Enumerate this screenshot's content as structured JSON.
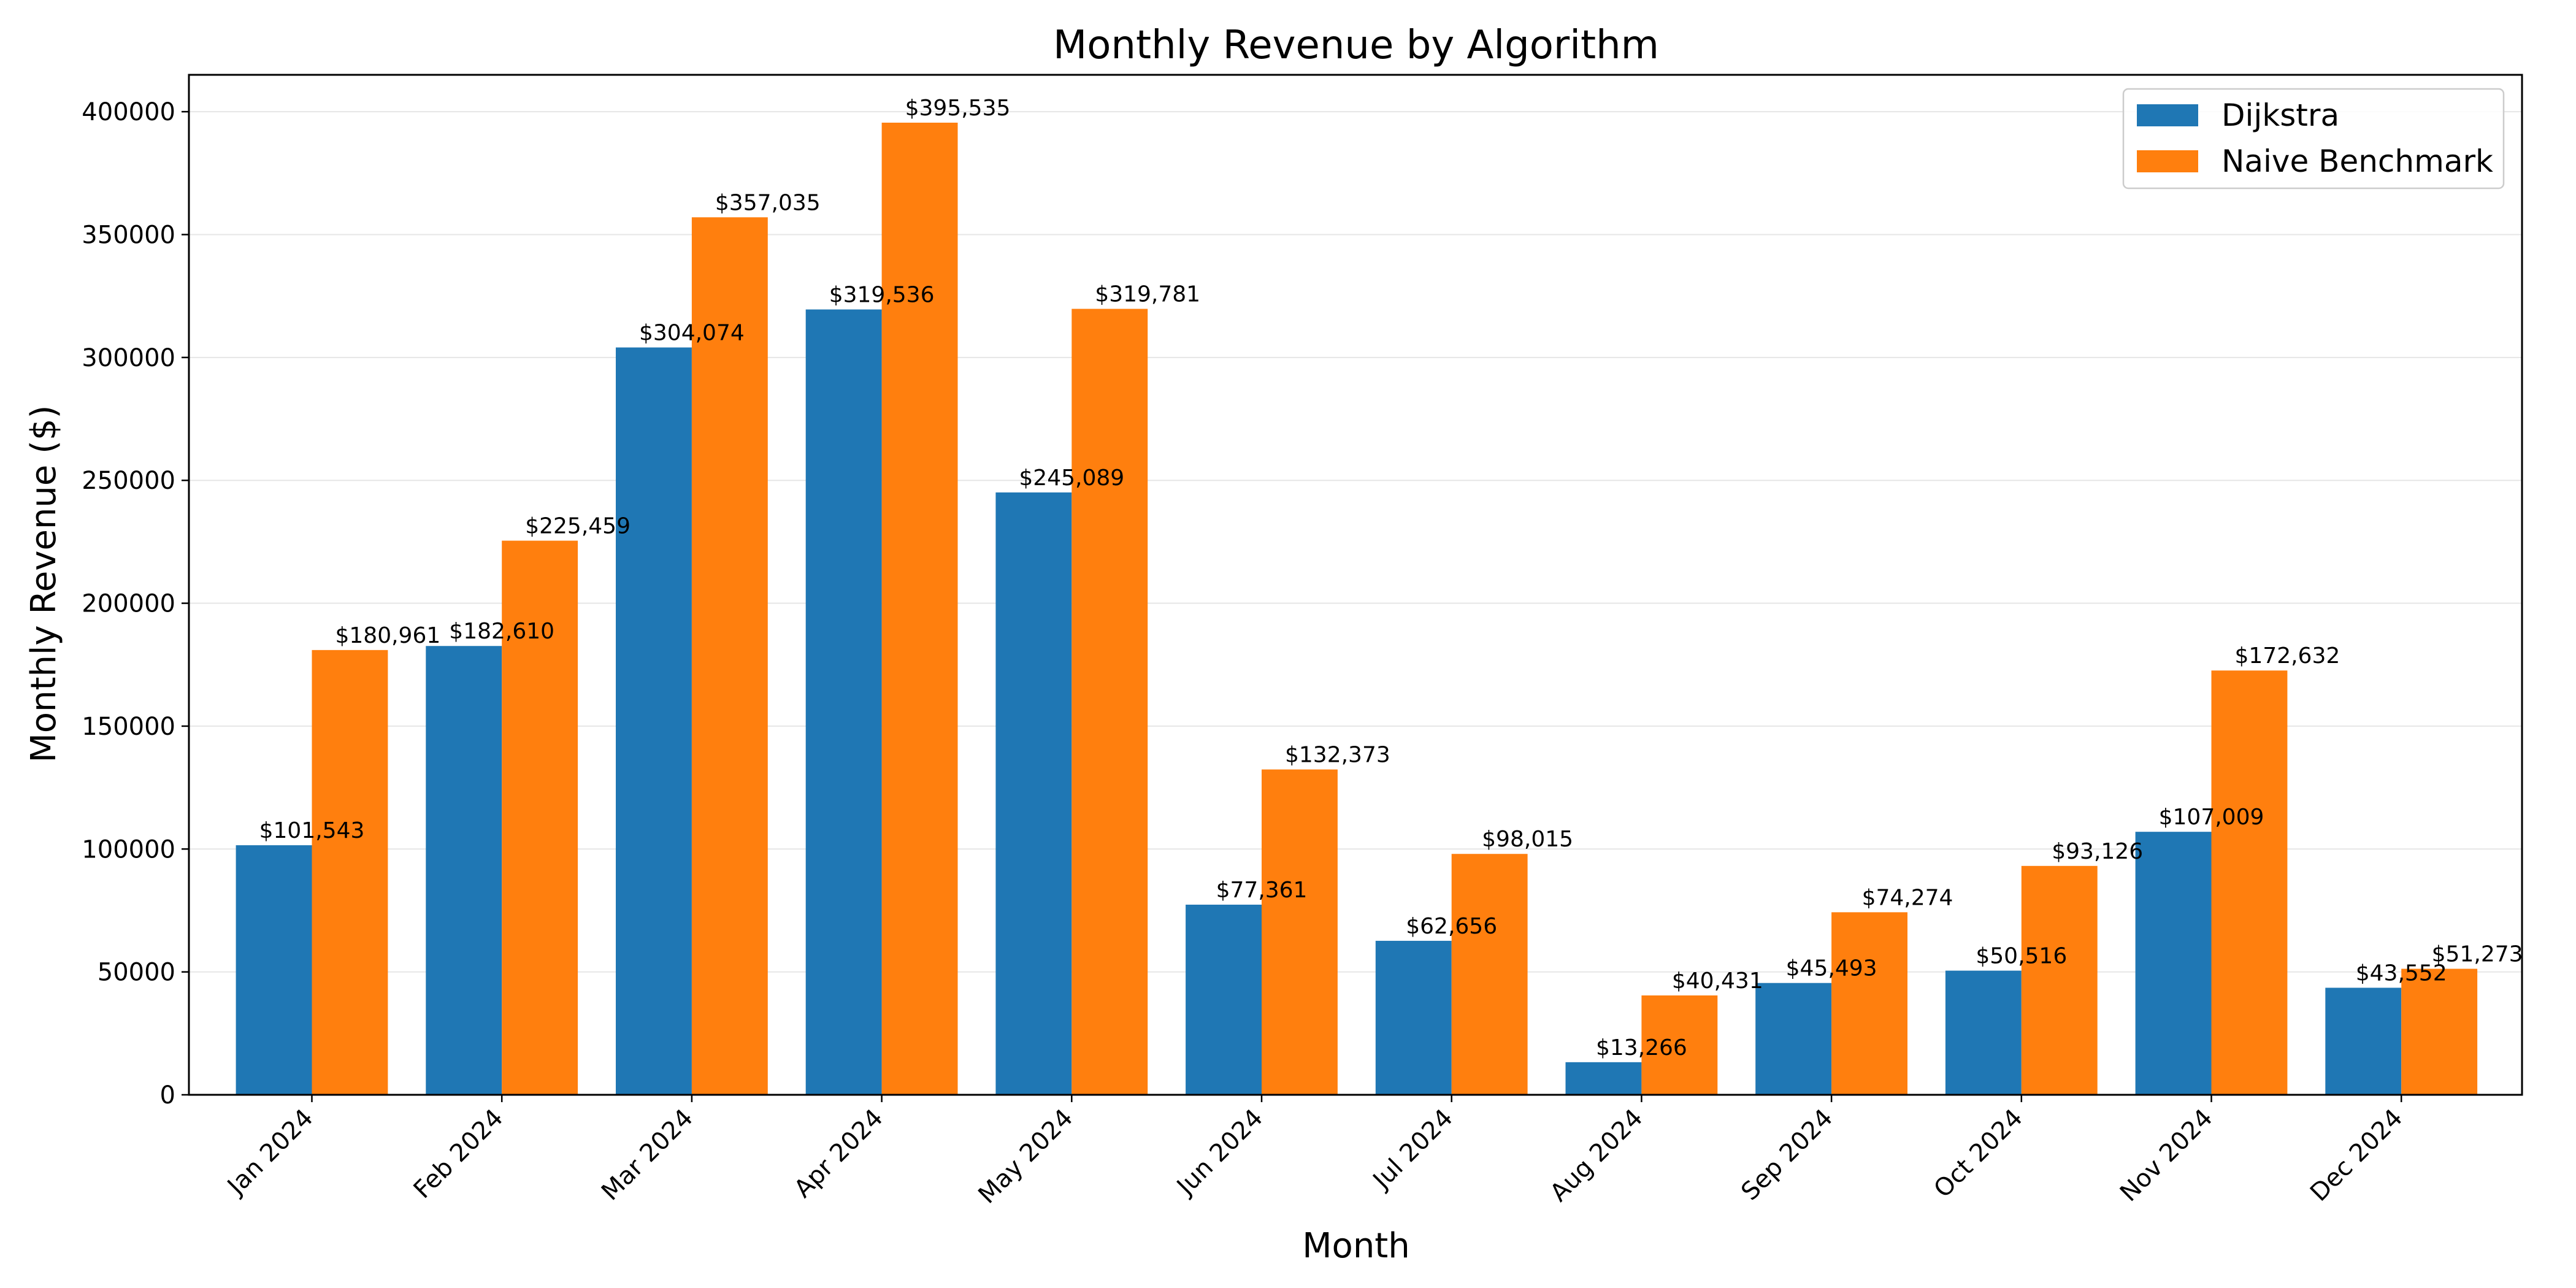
{
  "chart_data": {
    "type": "bar",
    "title": "Monthly Revenue by Algorithm",
    "xlabel": "Month",
    "ylabel": "Monthly Revenue ($)",
    "ylim": [
      0,
      415000
    ],
    "yticks": [
      0,
      50000,
      100000,
      150000,
      200000,
      250000,
      300000,
      350000,
      400000
    ],
    "grid": "horizontal",
    "legend_position": "top-right",
    "categories": [
      "Jan 2024",
      "Feb 2024",
      "Mar 2024",
      "Apr 2024",
      "May 2024",
      "Jun 2024",
      "Jul 2024",
      "Aug 2024",
      "Sep 2024",
      "Oct 2024",
      "Nov 2024",
      "Dec 2024"
    ],
    "series": [
      {
        "name": "Dijkstra",
        "color": "#1f77b4",
        "values": [
          101543,
          182610,
          304074,
          319536,
          245089,
          77361,
          62656,
          13266,
          45493,
          50516,
          107009,
          43552
        ],
        "labels": [
          "$101,543",
          "$182,610",
          "$304,074",
          "$319,536",
          "$245,089",
          "$77,361",
          "$62,656",
          "$13,266",
          "$45,493",
          "$50,516",
          "$107,009",
          "$43,552"
        ]
      },
      {
        "name": "Naive Benchmark",
        "color": "#ff7f0e",
        "values": [
          180961,
          225459,
          357035,
          395535,
          319781,
          132373,
          98015,
          40431,
          74274,
          93126,
          172632,
          51273
        ],
        "labels": [
          "$180,961",
          "$225,459",
          "$357,035",
          "$395,535",
          "$319,781",
          "$132,373",
          "$98,015",
          "$40,431",
          "$74,274",
          "$93,126",
          "$172,632",
          "$51,273"
        ]
      }
    ]
  }
}
